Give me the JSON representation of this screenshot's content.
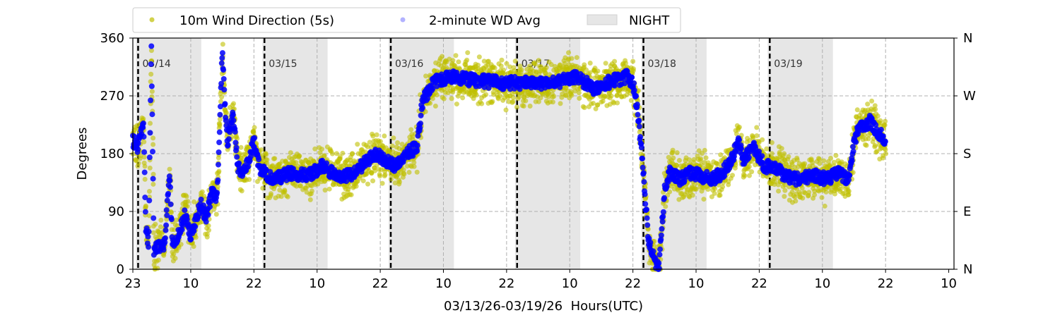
{
  "chart_data": {
    "type": "scatter",
    "title": "",
    "xlabel": "03/13/26-03/19/26  Hours(UTC)",
    "ylabel": "Degrees",
    "ylim": [
      0,
      360
    ],
    "xlim_hours": [
      0,
      156
    ],
    "x_start": "03/13 23:00 UTC",
    "x_ticks": [
      {
        "hour": 0,
        "label": "23"
      },
      {
        "hour": 11,
        "label": "10"
      },
      {
        "hour": 23,
        "label": "22"
      },
      {
        "hour": 35,
        "label": "10"
      },
      {
        "hour": 47,
        "label": "22"
      },
      {
        "hour": 59,
        "label": "10"
      },
      {
        "hour": 71,
        "label": "22"
      },
      {
        "hour": 83,
        "label": "10"
      },
      {
        "hour": 95,
        "label": "22"
      },
      {
        "hour": 107,
        "label": "10"
      },
      {
        "hour": 119,
        "label": "22"
      },
      {
        "hour": 131,
        "label": "10"
      },
      {
        "hour": 143,
        "label": "22"
      },
      {
        "hour": 155,
        "label": "10"
      }
    ],
    "y_ticks": [
      {
        "value": 0,
        "label": "0"
      },
      {
        "value": 90,
        "label": "90"
      },
      {
        "value": 180,
        "label": "180"
      },
      {
        "value": 270,
        "label": "270"
      },
      {
        "value": 360,
        "label": "360"
      }
    ],
    "y2_ticks": [
      {
        "value": 0,
        "label": "N"
      },
      {
        "value": 90,
        "label": "E"
      },
      {
        "value": 180,
        "label": "S"
      },
      {
        "value": 270,
        "label": "W"
      },
      {
        "value": 360,
        "label": "N"
      }
    ],
    "grid": true,
    "legend": {
      "placement": "top",
      "entries": [
        {
          "label": "10m Wind Direction (5s)",
          "color": "#bfbf00"
        },
        {
          "label": "2-minute WD Avg",
          "color": "#0000ff"
        },
        {
          "label": "NIGHT",
          "color": "#e6e6e6"
        }
      ]
    },
    "date_markers": [
      {
        "hour": 1,
        "label": "03/14"
      },
      {
        "hour": 25,
        "label": "03/15"
      },
      {
        "hour": 49,
        "label": "03/16"
      },
      {
        "hour": 73,
        "label": "03/17"
      },
      {
        "hour": 97,
        "label": "03/18"
      },
      {
        "hour": 121,
        "label": "03/19"
      }
    ],
    "night_periods_hours": [
      [
        0.6,
        13
      ],
      [
        24.6,
        37
      ],
      [
        48.6,
        61
      ],
      [
        72.6,
        85
      ],
      [
        96.6,
        109
      ],
      [
        120.6,
        133
      ]
    ],
    "series": [
      {
        "name": "2-minute WD Avg",
        "color": "#0000ff",
        "points_hour_deg": [
          [
            0,
            200
          ],
          [
            1,
            190
          ],
          [
            2,
            230
          ],
          [
            2.5,
            60
          ],
          [
            3,
            40
          ],
          [
            3.5,
            355
          ],
          [
            4,
            30
          ],
          [
            5,
            35
          ],
          [
            6,
            40
          ],
          [
            7,
            150
          ],
          [
            7.5,
            40
          ],
          [
            8,
            40
          ],
          [
            9,
            60
          ],
          [
            10,
            90
          ],
          [
            11,
            50
          ],
          [
            12,
            80
          ],
          [
            13,
            100
          ],
          [
            14,
            80
          ],
          [
            15,
            120
          ],
          [
            16,
            110
          ],
          [
            17,
            340
          ],
          [
            17.5,
            250
          ],
          [
            18,
            200
          ],
          [
            19,
            240
          ],
          [
            20,
            160
          ],
          [
            21,
            150
          ],
          [
            22,
            170
          ],
          [
            23,
            200
          ],
          [
            24,
            160
          ],
          [
            25,
            150
          ],
          [
            27,
            140
          ],
          [
            30,
            150
          ],
          [
            33,
            145
          ],
          [
            36,
            160
          ],
          [
            38,
            150
          ],
          [
            40,
            145
          ],
          [
            42,
            150
          ],
          [
            44,
            165
          ],
          [
            46,
            180
          ],
          [
            48,
            170
          ],
          [
            50,
            160
          ],
          [
            52,
            180
          ],
          [
            54,
            190
          ],
          [
            55,
            260
          ],
          [
            57,
            290
          ],
          [
            60,
            300
          ],
          [
            64,
            295
          ],
          [
            70,
            290
          ],
          [
            75,
            290
          ],
          [
            80,
            290
          ],
          [
            84,
            300
          ],
          [
            88,
            280
          ],
          [
            90,
            290
          ],
          [
            94,
            300
          ],
          [
            95,
            290
          ],
          [
            96,
            240
          ],
          [
            97,
            150
          ],
          [
            98,
            40
          ],
          [
            99,
            20
          ],
          [
            99.5,
            5
          ],
          [
            100,
            10
          ],
          [
            101,
            120
          ],
          [
            102,
            150
          ],
          [
            104,
            140
          ],
          [
            106,
            150
          ],
          [
            108,
            145
          ],
          [
            110,
            140
          ],
          [
            112,
            150
          ],
          [
            114,
            175
          ],
          [
            115,
            200
          ],
          [
            116,
            170
          ],
          [
            118,
            190
          ],
          [
            120,
            160
          ],
          [
            122,
            160
          ],
          [
            124,
            145
          ],
          [
            126,
            140
          ],
          [
            130,
            145
          ],
          [
            132,
            140
          ],
          [
            134,
            150
          ],
          [
            136,
            140
          ],
          [
            137,
            200
          ],
          [
            138,
            220
          ],
          [
            140,
            230
          ],
          [
            142,
            210
          ],
          [
            143,
            200
          ]
        ]
      },
      {
        "name": "10m Wind Direction (5s)",
        "color": "#bfbf00",
        "same_trend_as": "2-minute WD Avg",
        "spread_deg": 28
      }
    ]
  }
}
